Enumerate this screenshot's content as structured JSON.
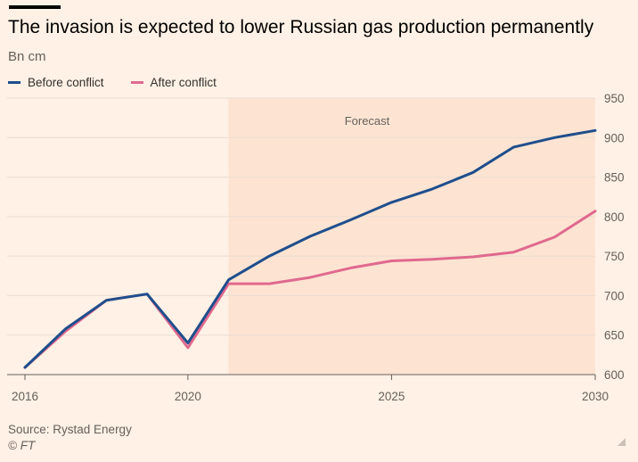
{
  "header": {
    "title": "The invasion is expected to lower Russian gas production permanently",
    "unit": "Bn cm"
  },
  "footer": {
    "source": "Source: Rystad Energy",
    "copyright": "© FT"
  },
  "chart_data": {
    "type": "line",
    "title": "The invasion is expected to lower Russian gas production permanently",
    "ylabel": "Bn cm",
    "xlim": [
      2016,
      2030
    ],
    "ylim": [
      600,
      950
    ],
    "x_ticks": [
      2016,
      2020,
      2025,
      2030
    ],
    "y_ticks": [
      600,
      650,
      700,
      750,
      800,
      850,
      900,
      950
    ],
    "grid": true,
    "legend_position": "top-left",
    "forecast_region": {
      "start": 2021,
      "end": 2030,
      "label": "Forecast",
      "color": "#fde4d2"
    },
    "x": [
      2016,
      2017,
      2018,
      2019,
      2020,
      2021,
      2022,
      2023,
      2024,
      2025,
      2026,
      2027,
      2028,
      2029,
      2030
    ],
    "series": [
      {
        "name": "Before conflict",
        "color": "#1f4e8c",
        "values": [
          609,
          658,
          694,
          702,
          640,
          720,
          750,
          775,
          796,
          818,
          835,
          856,
          888,
          900,
          909
        ]
      },
      {
        "name": "After conflict",
        "color": "#e0698e",
        "values": [
          609,
          655,
          694,
          702,
          634,
          715,
          715,
          723,
          735,
          744,
          746,
          749,
          755,
          774,
          807
        ]
      }
    ]
  }
}
